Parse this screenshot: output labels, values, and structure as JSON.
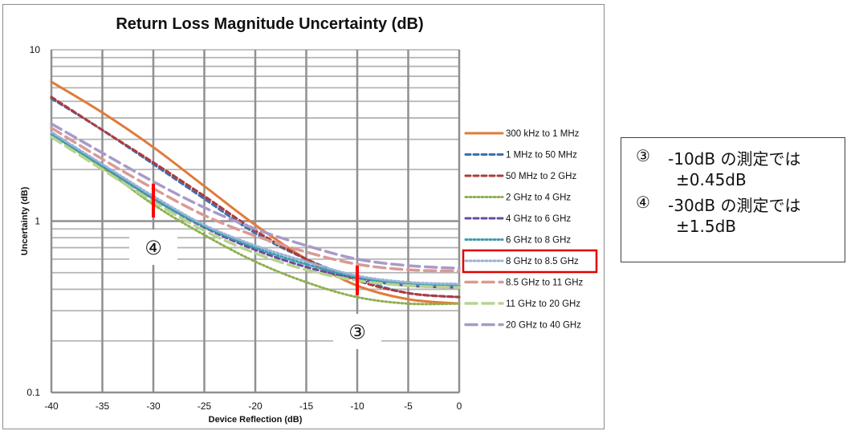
{
  "chart_data": {
    "type": "line",
    "title": "Return Loss Magnitude Uncertainty (dB)",
    "xlabel": "Device Reflection (dB)",
    "ylabel": "Uncertainty (dB)",
    "x_scale": "linear",
    "y_scale": "log",
    "xlim": [
      -40,
      0
    ],
    "ylim": [
      0.1,
      10
    ],
    "x_ticks": [
      "-40",
      "-35",
      "-30",
      "-25",
      "-20",
      "-15",
      "-10",
      "-5",
      "0"
    ],
    "y_ticks": [
      "10",
      "1",
      "0.1"
    ],
    "grid": true,
    "legend_position": "right",
    "x": [
      -40,
      -35,
      -30,
      -25,
      -20,
      -15,
      -10,
      -5,
      0
    ],
    "series": [
      {
        "name": "300 kHz to 1 MHz",
        "color": "#e07b39",
        "dash": "solid",
        "values": [
          6.5,
          4.3,
          2.7,
          1.6,
          0.95,
          0.6,
          0.42,
          0.35,
          0.33
        ]
      },
      {
        "name": "1 MHz to 50 MHz",
        "color": "#3c6fb0",
        "dash": "dash",
        "values": [
          5.2,
          3.4,
          2.15,
          1.35,
          0.85,
          0.6,
          0.46,
          0.38,
          0.36
        ]
      },
      {
        "name": "50 MHz to 2 GHz",
        "color": "#b03a3a",
        "dash": "dash",
        "values": [
          5.3,
          3.4,
          2.2,
          1.4,
          0.88,
          0.6,
          0.45,
          0.38,
          0.36
        ]
      },
      {
        "name": "2 GHz to 4 GHz",
        "color": "#8eb04f",
        "dash": "dot",
        "values": [
          3.2,
          2.05,
          1.25,
          0.83,
          0.58,
          0.44,
          0.36,
          0.33,
          0.33
        ]
      },
      {
        "name": "4 GHz to 6 GHz",
        "color": "#6a4c9c",
        "dash": "dash",
        "values": [
          3.3,
          2.1,
          1.35,
          0.92,
          0.68,
          0.54,
          0.46,
          0.42,
          0.41
        ]
      },
      {
        "name": "6 GHz to 8 GHz",
        "color": "#3a9db0",
        "dash": "dot",
        "values": [
          3.2,
          2.1,
          1.35,
          0.93,
          0.7,
          0.56,
          0.47,
          0.43,
          0.42
        ]
      },
      {
        "name": "8 GHz to 8.5 GHz",
        "color": "#9ab2d6",
        "dash": "dot",
        "values": [
          3.3,
          2.15,
          1.4,
          0.95,
          0.72,
          0.58,
          0.48,
          0.44,
          0.43
        ]
      },
      {
        "name": "8.5 GHz to 11 GHz",
        "color": "#d99a96",
        "dash": "longdash",
        "values": [
          3.5,
          2.3,
          1.55,
          1.08,
          0.82,
          0.66,
          0.56,
          0.52,
          0.51
        ]
      },
      {
        "name": "11 GHz to 20 GHz",
        "color": "#b9d38f",
        "dash": "longdash",
        "values": [
          3.1,
          2.0,
          1.3,
          0.88,
          0.65,
          0.52,
          0.45,
          0.42,
          0.41
        ]
      },
      {
        "name": "20 GHz to 40 GHz",
        "color": "#a89ac8",
        "dash": "longdash",
        "values": [
          3.7,
          2.5,
          1.7,
          1.2,
          0.9,
          0.72,
          0.6,
          0.55,
          0.53
        ]
      }
    ],
    "markers": [
      {
        "label": "③",
        "x": -10,
        "y_low": 0.37,
        "y_high": 0.55
      },
      {
        "label": "④",
        "x": -30,
        "y_low": 1.05,
        "y_high": 1.65
      }
    ],
    "highlighted_legend_entry": "8 GHz to 8.5 GHz",
    "marker_color": "#ff0000"
  },
  "notes": [
    {
      "num": "③",
      "line1": "-10dB の測定では",
      "line2": "±0.45dB"
    },
    {
      "num": "④",
      "line1": "-30dB の測定では",
      "line2": "±1.5dB"
    }
  ]
}
